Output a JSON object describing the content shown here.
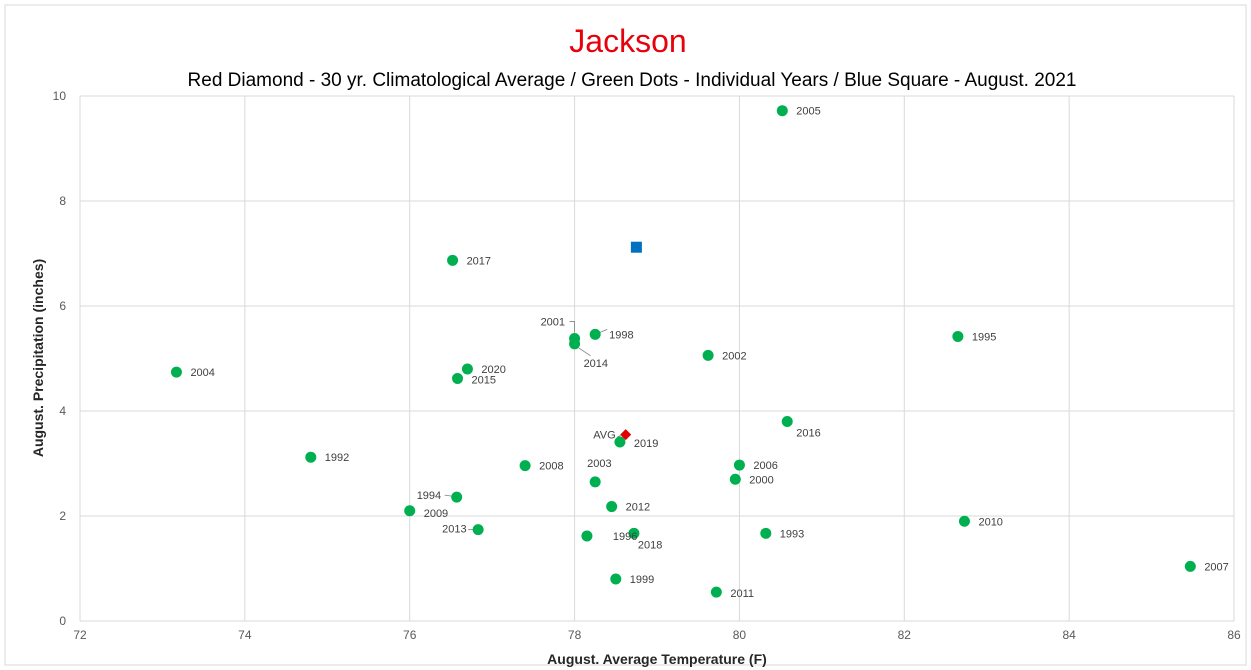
{
  "chart_data": {
    "type": "scatter",
    "title": "Jackson",
    "subtitle": "Red Diamond - 30 yr. Climatological Average / Green Dots - Individual Years / Blue Square - August. 2021",
    "xlabel": "August. Average Temperature (F)",
    "ylabel": "August. Precipitation (inches)",
    "xlim": [
      72,
      86
    ],
    "ylim": [
      0,
      10
    ],
    "xticks": [
      72,
      74,
      76,
      78,
      80,
      82,
      84,
      86
    ],
    "yticks": [
      0,
      2,
      4,
      6,
      8,
      10
    ],
    "grid": true,
    "colors": {
      "title": "#e8000b",
      "years": "#00b050",
      "average": "#e00000",
      "current": "#0070c0",
      "grid": "#d9d9d9"
    },
    "years": [
      {
        "label": "1992",
        "x": 74.8,
        "y": 3.12
      },
      {
        "label": "1993",
        "x": 80.32,
        "y": 1.67
      },
      {
        "label": "1994",
        "x": 76.57,
        "y": 2.36
      },
      {
        "label": "1995",
        "x": 82.65,
        "y": 5.42
      },
      {
        "label": "1996",
        "x": 78.15,
        "y": 1.62
      },
      {
        "label": "1998",
        "x": 78.25,
        "y": 5.46
      },
      {
        "label": "1999",
        "x": 78.5,
        "y": 0.8
      },
      {
        "label": "2000",
        "x": 79.95,
        "y": 2.7
      },
      {
        "label": "2001",
        "x": 78.0,
        "y": 5.38
      },
      {
        "label": "2002",
        "x": 79.62,
        "y": 5.06
      },
      {
        "label": "2003",
        "x": 78.25,
        "y": 2.65
      },
      {
        "label": "2004",
        "x": 73.17,
        "y": 4.74
      },
      {
        "label": "2005",
        "x": 80.52,
        "y": 9.72
      },
      {
        "label": "2006",
        "x": 80.0,
        "y": 2.97
      },
      {
        "label": "2007",
        "x": 85.47,
        "y": 1.04
      },
      {
        "label": "2008",
        "x": 77.4,
        "y": 2.96
      },
      {
        "label": "2009",
        "x": 76.0,
        "y": 2.1
      },
      {
        "label": "2010",
        "x": 82.73,
        "y": 1.9
      },
      {
        "label": "2011",
        "x": 79.72,
        "y": 0.55
      },
      {
        "label": "2012",
        "x": 78.45,
        "y": 2.18
      },
      {
        "label": "2013",
        "x": 76.83,
        "y": 1.74
      },
      {
        "label": "2014",
        "x": 78.0,
        "y": 5.28
      },
      {
        "label": "2015",
        "x": 76.58,
        "y": 4.62
      },
      {
        "label": "2016",
        "x": 80.58,
        "y": 3.8
      },
      {
        "label": "2017",
        "x": 76.52,
        "y": 6.87
      },
      {
        "label": "2018",
        "x": 78.72,
        "y": 1.67
      },
      {
        "label": "2019",
        "x": 78.55,
        "y": 3.41
      },
      {
        "label": "2020",
        "x": 76.7,
        "y": 4.8
      }
    ],
    "average": {
      "label": "AVG",
      "x": 78.62,
      "y": 3.55
    },
    "current": {
      "x": 78.75,
      "y": 7.12
    }
  }
}
